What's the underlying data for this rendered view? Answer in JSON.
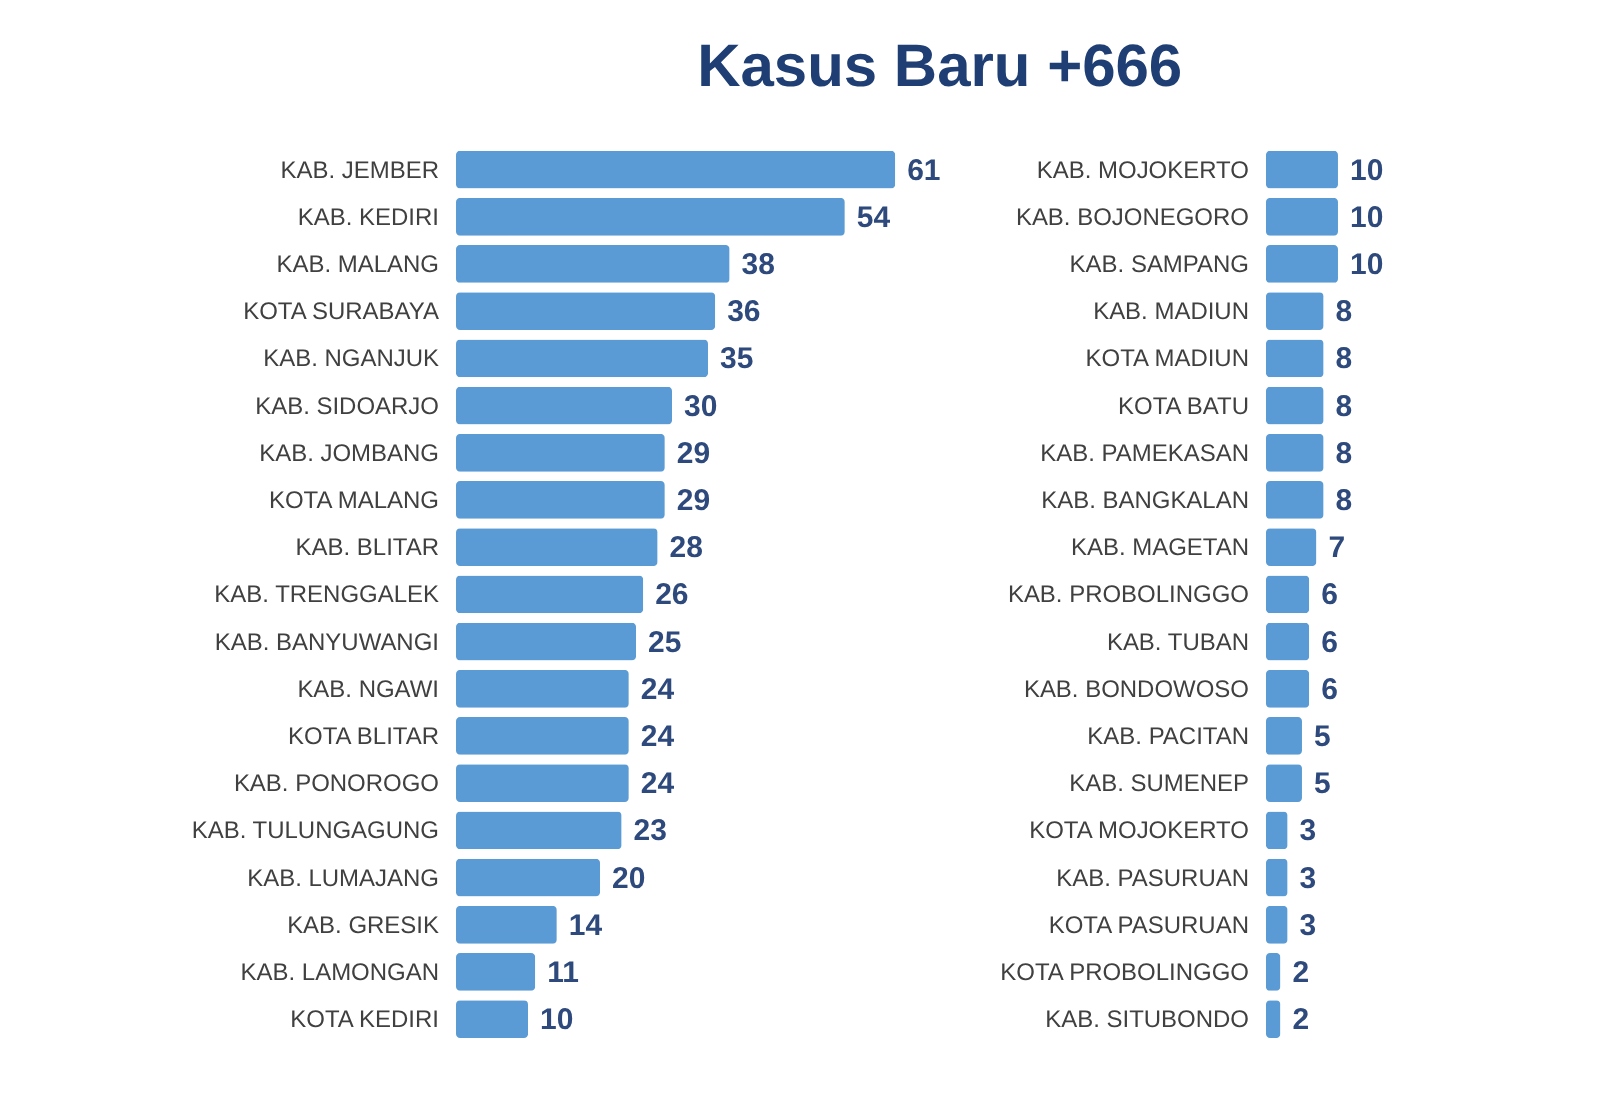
{
  "chart_data": [
    {
      "type": "bar",
      "title": "Kasus Baru +666",
      "orientation": "horizontal",
      "tick_labels": "y",
      "data_labels": true,
      "color": "#5b9bd5",
      "categories": [
        "KAB. JEMBER",
        "KAB. KEDIRI",
        "KAB. MALANG",
        "KOTA SURABAYA",
        "KAB. NGANJUK",
        "KAB. SIDOARJO",
        "KAB. JOMBANG",
        "KOTA MALANG",
        "KAB. BLITAR",
        "KAB. TRENGGALEK",
        "KAB. BANYUWANGI",
        "KAB. NGAWI",
        "KOTA BLITAR",
        "KAB. PONOROGO",
        "KAB. TULUNGAGUNG",
        "KAB. LUMAJANG",
        "KAB. GRESIK",
        "KAB. LAMONGAN",
        "KOTA KEDIRI"
      ],
      "values": [
        61,
        54,
        38,
        36,
        35,
        30,
        29,
        29,
        28,
        26,
        25,
        24,
        24,
        24,
        23,
        20,
        14,
        11,
        10
      ]
    },
    {
      "type": "bar",
      "orientation": "horizontal",
      "tick_labels": "y",
      "data_labels": true,
      "color": "#5b9bd5",
      "categories": [
        "KAB. MOJOKERTO",
        "KAB. BOJONEGORO",
        "KAB. SAMPANG",
        "KAB. MADIUN",
        "KOTA MADIUN",
        "KOTA BATU",
        "KAB. PAMEKASAN",
        "KAB. BANGKALAN",
        "KAB. MAGETAN",
        "KAB. PROBOLINGGO",
        "KAB. TUBAN",
        "KAB. BONDOWOSO",
        "KAB. PACITAN",
        "KAB. SUMENEP",
        "KOTA MOJOKERTO",
        "KAB. PASURUAN",
        "KOTA PASURUAN",
        "KOTA PROBOLINGGO",
        "KAB. SITUBONDO"
      ],
      "values": [
        10,
        10,
        10,
        8,
        8,
        8,
        8,
        8,
        7,
        6,
        6,
        6,
        5,
        5,
        3,
        3,
        3,
        2,
        2
      ]
    }
  ]
}
